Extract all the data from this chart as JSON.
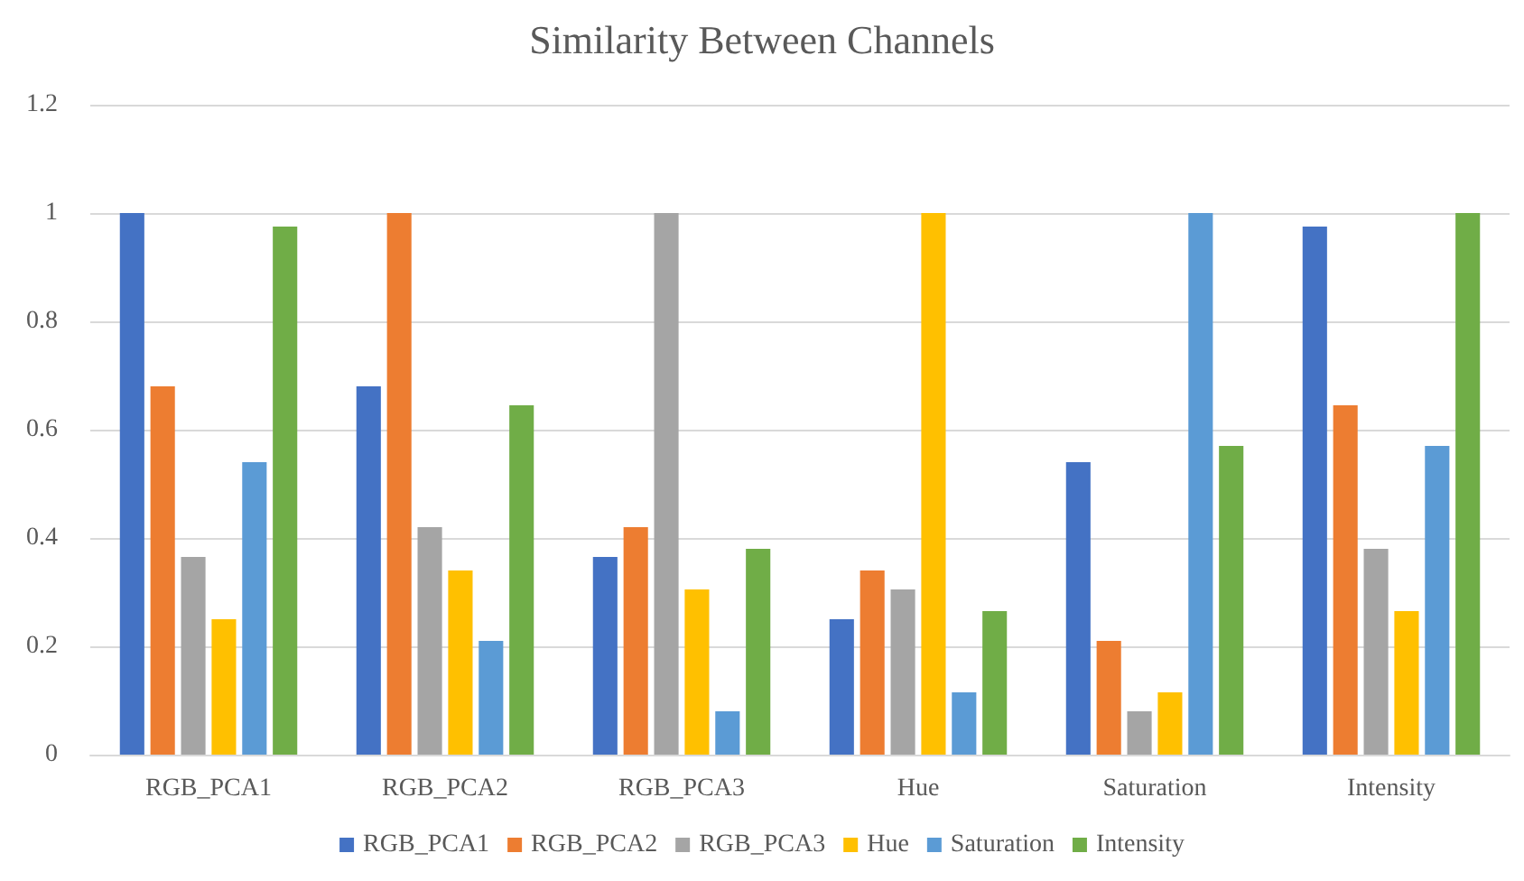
{
  "chart_data": {
    "type": "bar",
    "title": "Similarity Between Channels",
    "categories": [
      "RGB_PCA1",
      "RGB_PCA2",
      "RGB_PCA3",
      "Hue",
      "Saturation",
      "Intensity"
    ],
    "series": [
      {
        "name": "RGB_PCA1",
        "color": "#4472c4",
        "values": [
          1,
          0.68,
          0.365,
          0.25,
          0.54,
          0.975
        ]
      },
      {
        "name": "RGB_PCA2",
        "color": "#ed7d31",
        "values": [
          0.68,
          1,
          0.42,
          0.34,
          0.21,
          0.645
        ]
      },
      {
        "name": "RGB_PCA3",
        "color": "#a5a5a5",
        "values": [
          0.365,
          0.42,
          1,
          0.305,
          0.08,
          0.38
        ]
      },
      {
        "name": "Hue",
        "color": "#ffc000",
        "values": [
          0.25,
          0.34,
          0.305,
          1,
          0.115,
          0.265
        ]
      },
      {
        "name": "Saturation",
        "color": "#5b9bd5",
        "values": [
          0.54,
          0.21,
          0.08,
          0.115,
          1,
          0.57
        ]
      },
      {
        "name": "Intensity",
        "color": "#70ad47",
        "values": [
          0.975,
          0.645,
          0.38,
          0.265,
          0.57,
          1
        ]
      }
    ],
    "ylim": [
      0,
      1.2
    ],
    "yticks": [
      0,
      0.2,
      0.4,
      0.6,
      0.8,
      1,
      1.2
    ],
    "grid": "y",
    "legend": "bottom"
  }
}
